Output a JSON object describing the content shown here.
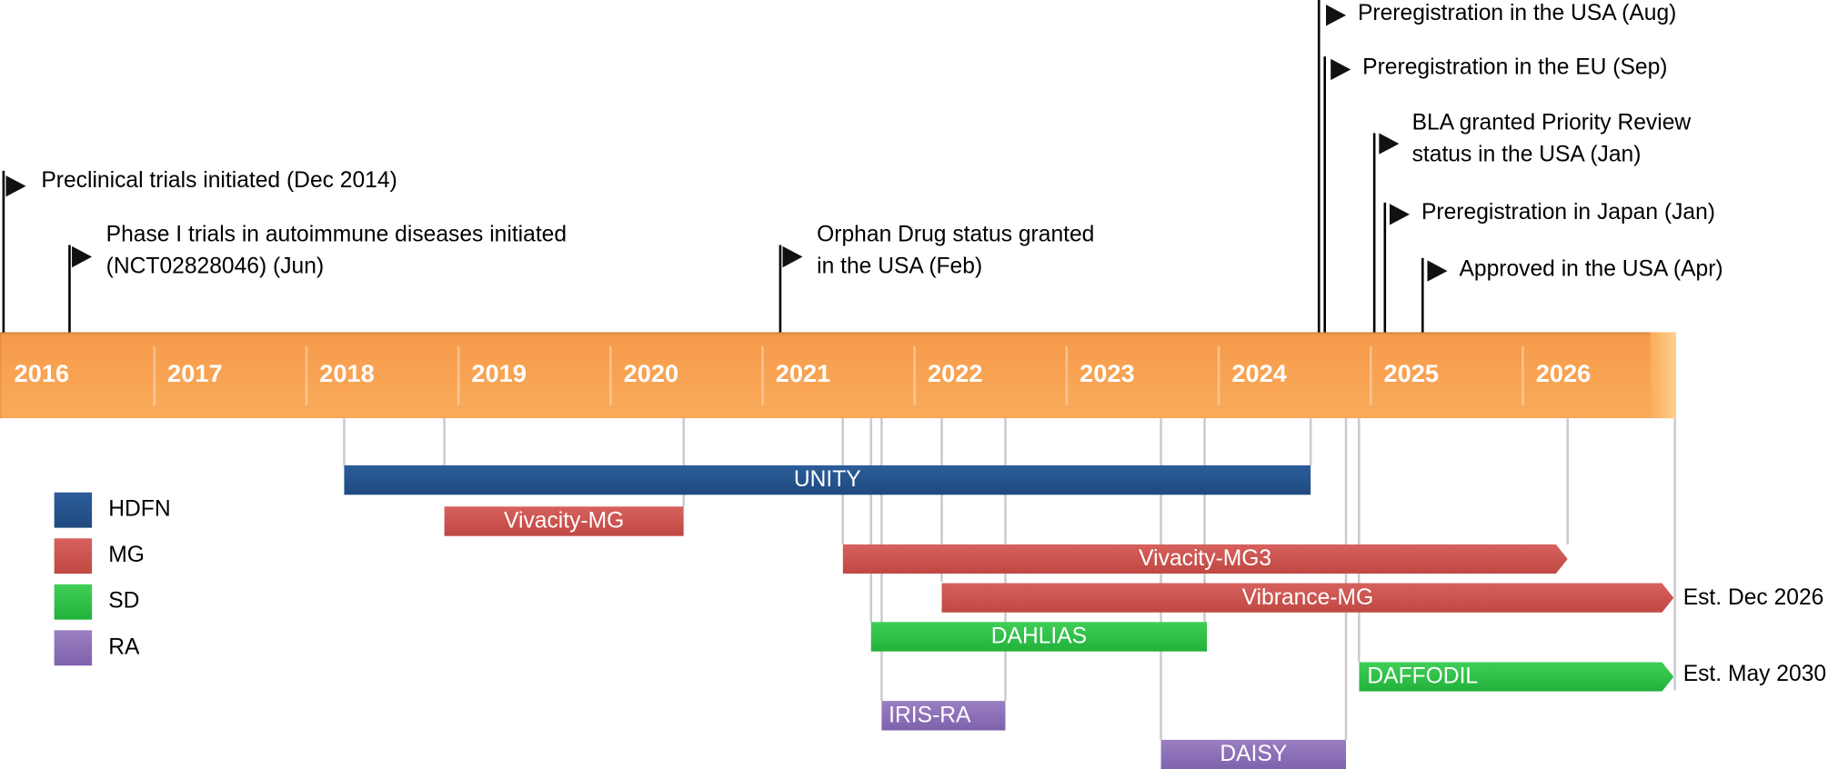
{
  "years": [
    "2016",
    "2017",
    "2018",
    "2019",
    "2020",
    "2021",
    "2022",
    "2023",
    "2024",
    "2025",
    "2026"
  ],
  "milestones": [
    {
      "lines": [
        "Preclinical trials initiated (Dec 2014)"
      ]
    },
    {
      "lines": [
        "Phase I trials  in autoimmune diseases initiated",
        "(NCT02828046) (Jun)"
      ]
    },
    {
      "lines": [
        "Orphan Drug status granted",
        "in the USA (Feb)"
      ]
    },
    {
      "lines": [
        "Preregistration in the USA (Aug)"
      ]
    },
    {
      "lines": [
        "Preregistration in the EU (Sep)"
      ]
    },
    {
      "lines": [
        "BLA granted Priority Review",
        "status in the USA (Jan)"
      ]
    },
    {
      "lines": [
        "Preregistration in Japan (Jan)"
      ]
    },
    {
      "lines": [
        "Approved in the USA (Apr)"
      ]
    }
  ],
  "trials": [
    {
      "name": "UNITY",
      "indication": "HDFN"
    },
    {
      "name": "Vivacity-MG",
      "indication": "MG"
    },
    {
      "name": "Vivacity-MG3",
      "indication": "MG"
    },
    {
      "name": "Vibrance-MG",
      "indication": "MG",
      "note": "Est. Dec 2026"
    },
    {
      "name": "DAHLIAS",
      "indication": "SD"
    },
    {
      "name": "DAFFODIL",
      "indication": "SD",
      "note": "Est. May 2030"
    },
    {
      "name": "IRIS-RA",
      "indication": "RA"
    },
    {
      "name": "DAISY",
      "indication": "RA"
    }
  ],
  "legend": [
    {
      "label": "HDFN",
      "color": "#1f4a80"
    },
    {
      "label": "MG",
      "color": "#c04843"
    },
    {
      "label": "SD",
      "color": "#22b13a"
    },
    {
      "label": "RA",
      "color": "#7e62ac"
    }
  ]
}
